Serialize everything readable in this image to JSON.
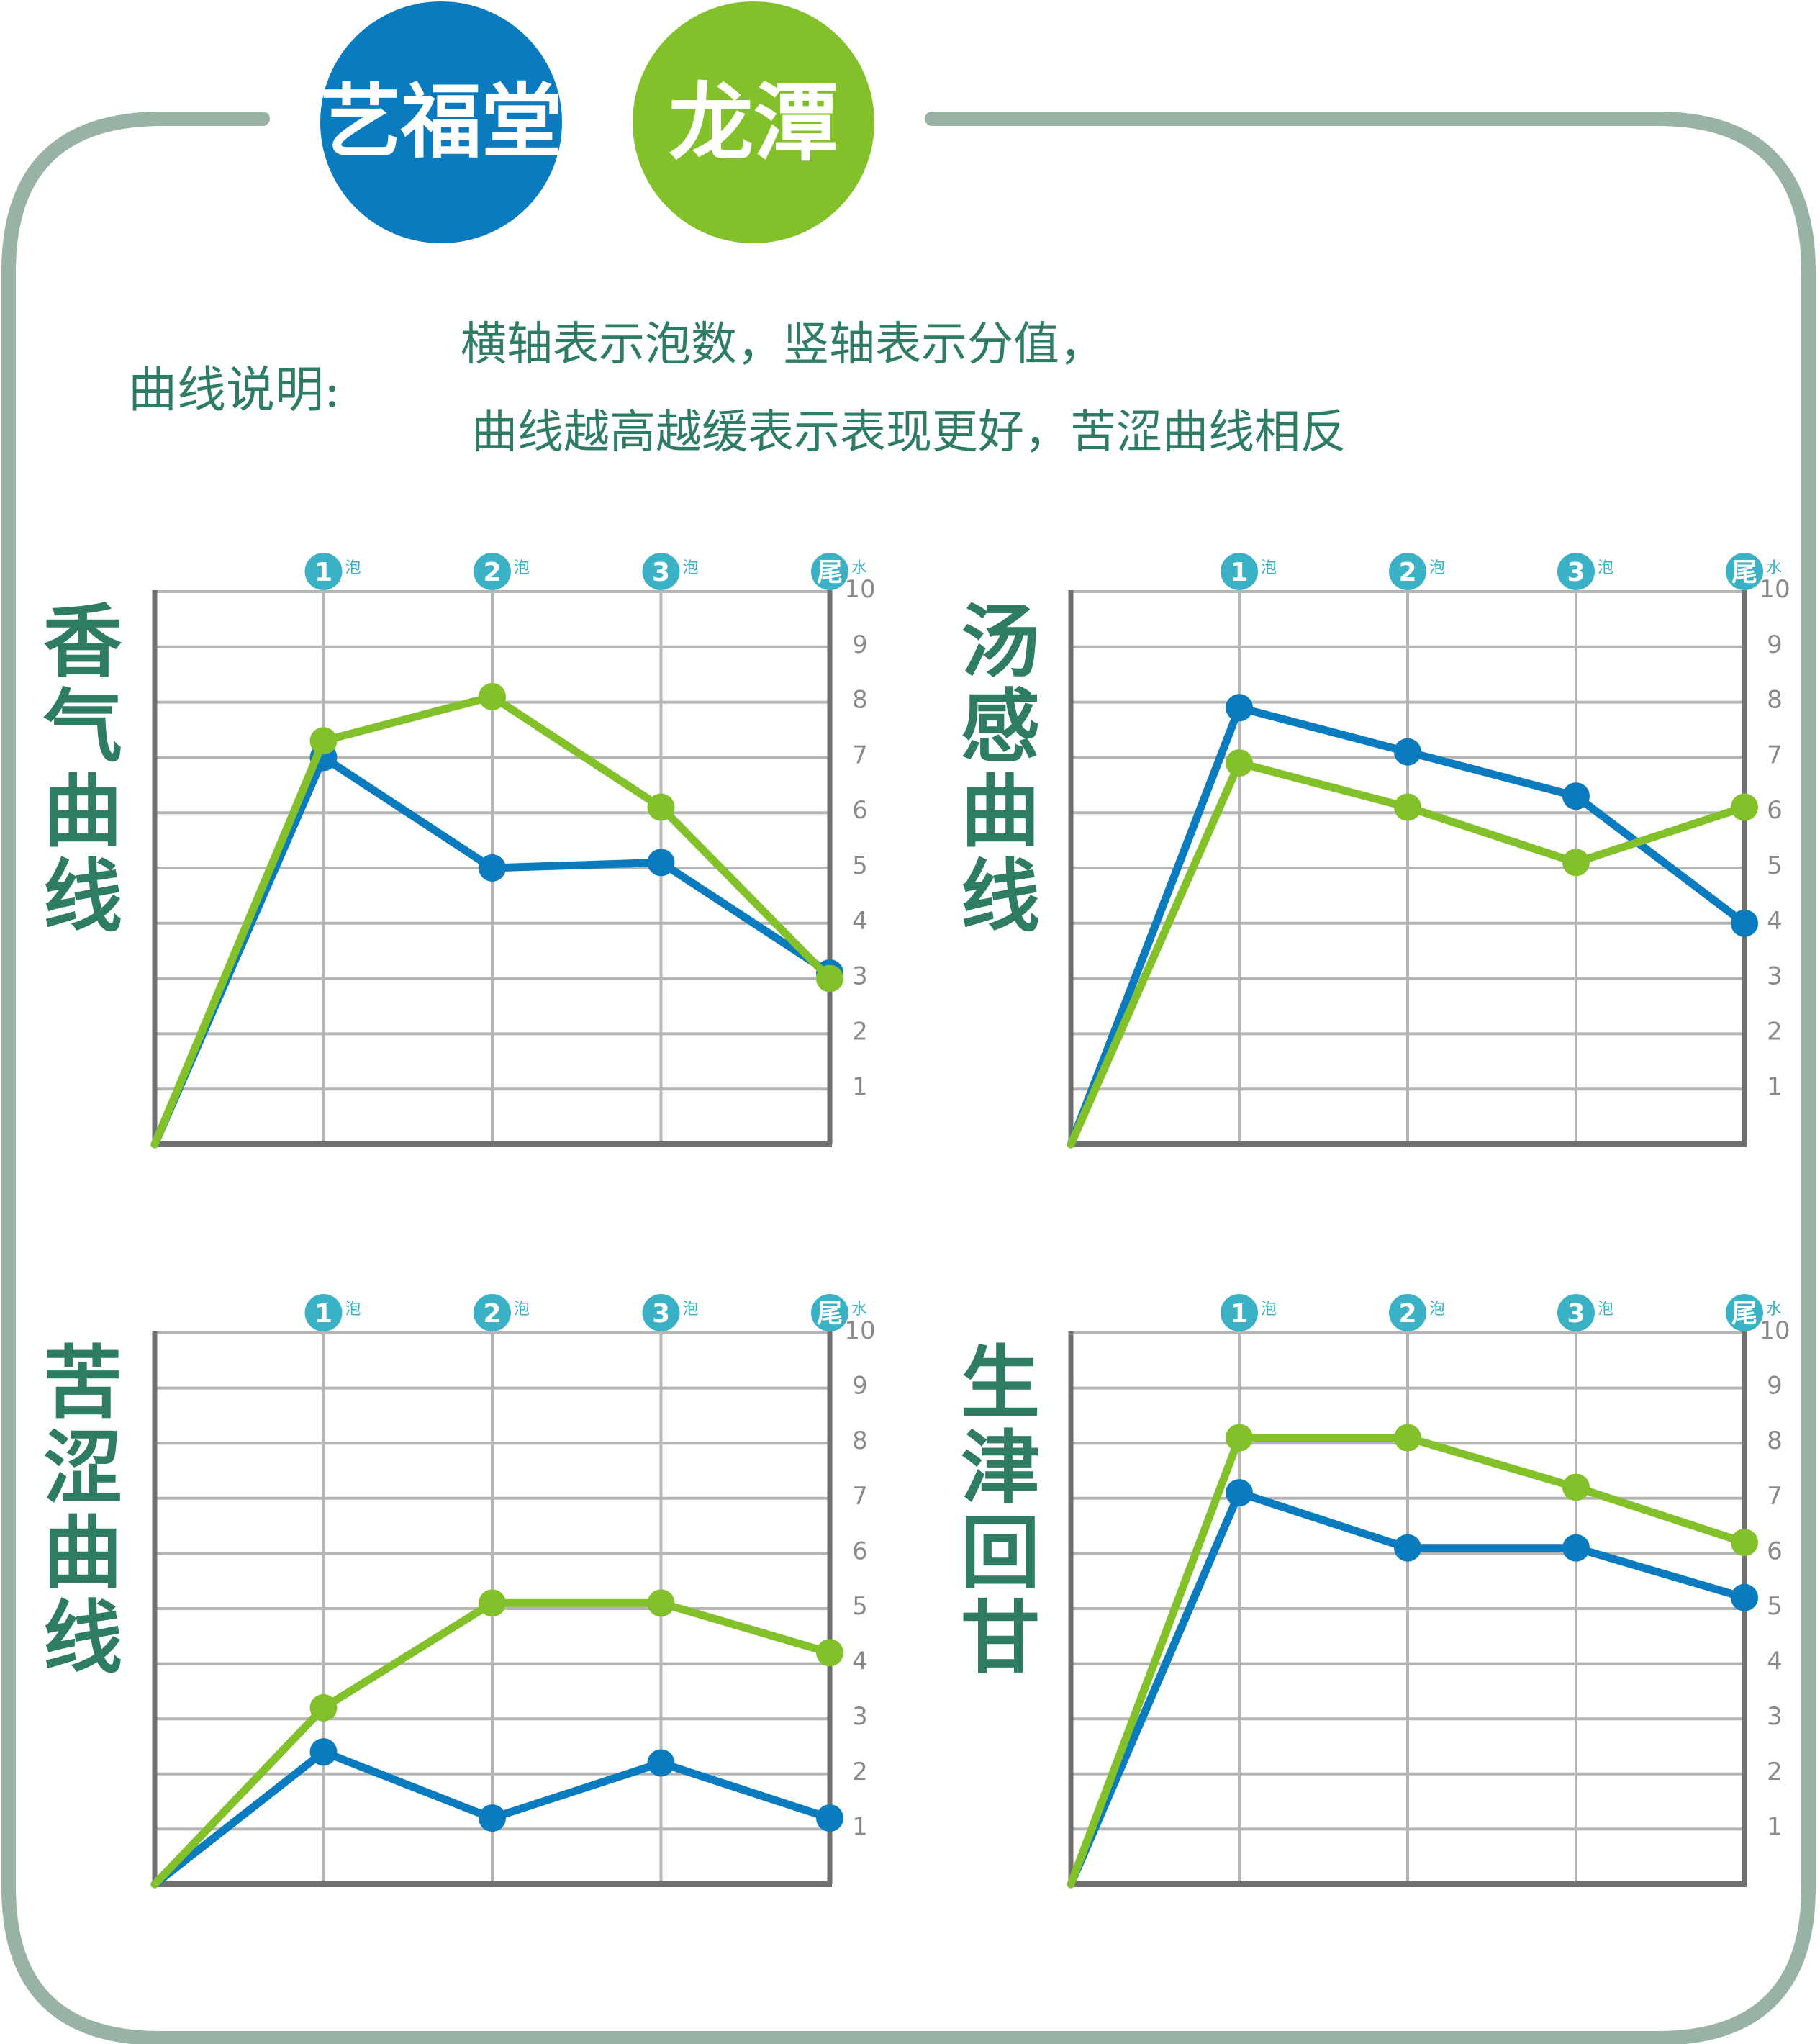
{
  "header": {
    "brands": [
      {
        "label": "艺福堂",
        "color": "#0b7bbf"
      },
      {
        "label": "龙潭",
        "color": "#82c12a"
      }
    ],
    "legend_title": "曲线说明:",
    "legend_line1": "横轴表示泡数，竖轴表示分值，",
    "legend_line2": "曲线越高越缓表示表现更好，苦涩曲线相反"
  },
  "colors": {
    "frame": "#98b3a4",
    "series_blue": "#0b7bbf",
    "series_green": "#82c12a",
    "xlabel_circle": "#3bb1c6",
    "title": "#2e7d62"
  },
  "chart_data": [
    {
      "type": "line",
      "title": "香气曲线",
      "x": [
        0,
        1,
        2,
        3,
        4
      ],
      "x_tick_labels": [
        {
          "num": "1",
          "unit": "泡"
        },
        {
          "num": "2",
          "unit": "泡"
        },
        {
          "num": "3",
          "unit": "泡"
        },
        {
          "num": "尾",
          "unit": "水"
        }
      ],
      "ylim": [
        0,
        10
      ],
      "y_ticks": [
        "1",
        "2",
        "3",
        "4",
        "5",
        "6",
        "7",
        "8",
        "9",
        "10"
      ],
      "grid": true,
      "series": [
        {
          "color": "blue",
          "values": [
            0,
            7,
            5,
            5.1,
            3.1
          ]
        },
        {
          "color": "green",
          "values": [
            0,
            7.3,
            8.1,
            6.1,
            3
          ]
        }
      ]
    },
    {
      "type": "line",
      "title": "汤感曲线",
      "x": [
        0,
        1,
        2,
        3,
        4
      ],
      "x_tick_labels": [
        {
          "num": "1",
          "unit": "泡"
        },
        {
          "num": "2",
          "unit": "泡"
        },
        {
          "num": "3",
          "unit": "泡"
        },
        {
          "num": "尾",
          "unit": "水"
        }
      ],
      "ylim": [
        0,
        10
      ],
      "y_ticks": [
        "1",
        "2",
        "3",
        "4",
        "5",
        "6",
        "7",
        "8",
        "9",
        "10"
      ],
      "grid": true,
      "series": [
        {
          "color": "blue",
          "values": [
            0,
            7.9,
            7.1,
            6.3,
            4
          ]
        },
        {
          "color": "green",
          "values": [
            0,
            6.9,
            6.1,
            5.1,
            6.1
          ]
        }
      ]
    },
    {
      "type": "line",
      "title": "苦涩曲线",
      "x": [
        0,
        1,
        2,
        3,
        4
      ],
      "x_tick_labels": [
        {
          "num": "1",
          "unit": "泡"
        },
        {
          "num": "2",
          "unit": "泡"
        },
        {
          "num": "3",
          "unit": "泡"
        },
        {
          "num": "尾",
          "unit": "水"
        }
      ],
      "ylim": [
        0,
        10
      ],
      "y_ticks": [
        "1",
        "2",
        "3",
        "4",
        "5",
        "6",
        "7",
        "8",
        "9",
        "10"
      ],
      "grid": true,
      "series": [
        {
          "color": "blue",
          "values": [
            0,
            2.4,
            1.2,
            2.2,
            1.2
          ]
        },
        {
          "color": "green",
          "values": [
            0,
            3.2,
            5.1,
            5.1,
            4.2
          ]
        }
      ]
    },
    {
      "type": "line",
      "title": "生津回甘",
      "x": [
        0,
        1,
        2,
        3,
        4
      ],
      "x_tick_labels": [
        {
          "num": "1",
          "unit": "泡"
        },
        {
          "num": "2",
          "unit": "泡"
        },
        {
          "num": "3",
          "unit": "泡"
        },
        {
          "num": "尾",
          "unit": "水"
        }
      ],
      "ylim": [
        0,
        10
      ],
      "y_ticks": [
        "1",
        "2",
        "3",
        "4",
        "5",
        "6",
        "7",
        "8",
        "9",
        "10"
      ],
      "grid": true,
      "series": [
        {
          "color": "blue",
          "values": [
            0,
            7.1,
            6.1,
            6.1,
            5.2
          ]
        },
        {
          "color": "green",
          "values": [
            0,
            8.1,
            8.1,
            7.2,
            6.2
          ]
        }
      ]
    }
  ]
}
